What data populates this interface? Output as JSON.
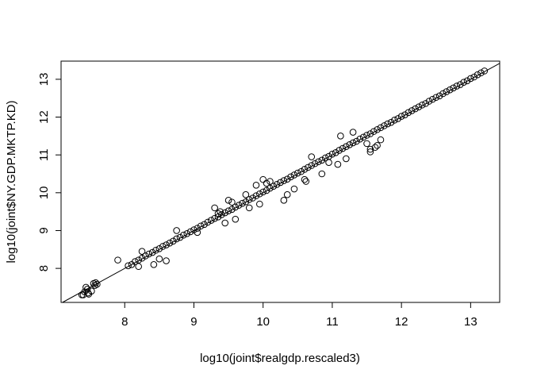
{
  "chart_data": {
    "type": "scatter",
    "title": "",
    "xlabel": "log10(joint$realgdp.rescaled3)",
    "ylabel": "log10(joint$NY.GDP.MKTP.KD)",
    "xlim": [
      7.08,
      13.42
    ],
    "ylim": [
      7.1,
      13.48
    ],
    "x_ticks": [
      8,
      9,
      10,
      11,
      12,
      13
    ],
    "y_ticks": [
      8,
      9,
      10,
      11,
      12,
      13
    ],
    "grid": false,
    "legend": "none",
    "reference_line": {
      "intercept": 0,
      "slope": 1,
      "label": ""
    },
    "marker": "open-circle",
    "colors": {
      "points": "#000000",
      "axis": "#000000",
      "background": "#ffffff"
    },
    "series": [
      {
        "x": [
          7.42,
          7.44,
          7.46,
          7.48,
          7.4,
          7.52,
          7.55,
          7.58,
          7.57,
          7.6,
          7.38,
          7.47,
          8.05,
          8.1,
          8.15,
          8.2,
          8.25,
          8.3,
          8.35,
          8.4,
          8.45,
          8.5,
          8.55,
          8.6,
          8.65,
          8.7,
          8.75,
          8.8,
          8.85,
          8.9,
          8.95,
          9.0,
          9.05,
          9.1,
          9.15,
          9.2,
          9.25,
          9.3,
          9.35,
          9.4,
          9.45,
          9.5,
          9.55,
          9.6,
          9.65,
          9.7,
          9.75,
          9.8,
          9.85,
          9.9,
          9.95,
          10.0,
          10.05,
          10.1,
          10.15,
          10.2,
          10.25,
          10.3,
          10.35,
          10.4,
          10.45,
          10.5,
          10.55,
          10.6,
          10.65,
          10.7,
          10.75,
          10.8,
          10.85,
          10.9,
          10.95,
          11.0,
          11.05,
          11.1,
          11.15,
          11.2,
          11.25,
          11.3,
          11.35,
          11.4,
          11.45,
          11.5,
          11.55,
          11.6,
          11.65,
          11.7,
          11.75,
          11.8,
          11.85,
          11.9,
          11.95,
          12.0,
          12.05,
          12.1,
          12.15,
          12.2,
          12.25,
          12.3,
          12.35,
          12.4,
          12.45,
          12.5,
          12.55,
          12.6,
          12.65,
          12.7,
          12.75,
          12.8,
          12.85,
          12.9,
          12.95,
          13.0,
          13.05,
          13.1,
          13.15,
          13.2,
          7.9,
          8.2,
          8.25,
          8.5,
          8.42,
          9.35,
          9.38,
          9.6,
          9.55,
          9.8,
          9.9,
          10.35,
          10.62,
          10.6,
          10.7,
          10.85,
          10.95,
          11.08,
          11.12,
          11.5,
          11.55,
          11.55,
          11.62,
          11.65,
          11.7,
          10.1,
          9.75,
          9.95,
          10.05,
          10.3,
          10.45,
          9.45,
          9.3,
          10.0,
          8.75,
          8.6,
          9.5,
          9.05,
          11.2,
          11.3
        ],
        "y": [
          7.38,
          7.5,
          7.45,
          7.32,
          7.3,
          7.4,
          7.6,
          7.62,
          7.55,
          7.58,
          7.3,
          7.35,
          8.07,
          8.1,
          8.18,
          8.22,
          8.27,
          8.33,
          8.38,
          8.42,
          8.48,
          8.52,
          8.58,
          8.62,
          8.67,
          8.72,
          8.78,
          8.82,
          8.88,
          8.92,
          8.97,
          9.02,
          9.06,
          9.12,
          9.16,
          9.22,
          9.27,
          9.32,
          9.36,
          9.42,
          9.47,
          9.52,
          9.56,
          9.62,
          9.67,
          9.72,
          9.76,
          9.82,
          9.86,
          9.92,
          9.97,
          10.02,
          10.06,
          10.12,
          10.17,
          10.22,
          10.27,
          10.32,
          10.36,
          10.42,
          10.47,
          10.52,
          10.56,
          10.62,
          10.67,
          10.72,
          10.77,
          10.82,
          10.86,
          10.92,
          10.96,
          11.02,
          11.06,
          11.12,
          11.17,
          11.22,
          11.27,
          11.32,
          11.36,
          11.42,
          11.47,
          11.52,
          11.56,
          11.62,
          11.67,
          11.72,
          11.77,
          11.82,
          11.86,
          11.92,
          11.96,
          12.02,
          12.06,
          12.12,
          12.17,
          12.22,
          12.27,
          12.32,
          12.36,
          12.42,
          12.47,
          12.52,
          12.56,
          12.62,
          12.67,
          12.72,
          12.77,
          12.82,
          12.86,
          12.92,
          12.96,
          13.02,
          13.06,
          13.12,
          13.17,
          13.22,
          8.22,
          8.05,
          8.45,
          8.25,
          8.1,
          9.45,
          9.5,
          9.3,
          9.75,
          9.6,
          10.2,
          9.95,
          10.3,
          10.35,
          10.95,
          10.5,
          10.8,
          10.75,
          11.5,
          11.3,
          11.15,
          11.08,
          11.2,
          11.25,
          11.4,
          10.3,
          9.95,
          9.7,
          10.25,
          9.8,
          10.1,
          9.2,
          9.6,
          10.35,
          9.0,
          8.2,
          9.8,
          8.95,
          10.9,
          11.6
        ]
      }
    ]
  }
}
